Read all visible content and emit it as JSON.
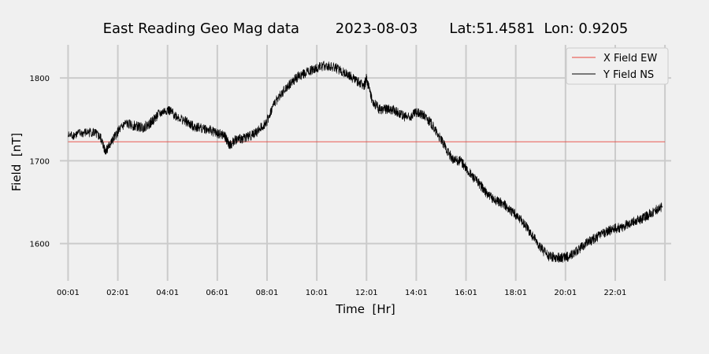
{
  "chart_data": {
    "type": "line",
    "title": "East Reading Geo Mag data        2023-08-03       Lat:51.4581  Lon: 0.9205",
    "xlabel": "Time  [Hr]",
    "ylabel": "Field  [nT]",
    "xlim": [
      -0.33,
      24.25
    ],
    "ylim": [
      1555,
      1840
    ],
    "x_ticks": [
      0,
      2,
      4,
      6,
      8,
      10,
      12,
      14,
      16,
      18,
      20,
      22
    ],
    "x_tick_labels": [
      "00:01",
      "02:01",
      "04:01",
      "06:01",
      "08:01",
      "10:01",
      "12:01",
      "14:01",
      "16:01",
      "18:01",
      "20:01",
      "22:01"
    ],
    "x_grid": [
      0,
      2,
      4,
      6,
      8,
      10,
      12,
      14,
      16,
      18,
      20,
      22,
      24
    ],
    "y_ticks": [
      1600,
      1700,
      1800
    ],
    "grid": true,
    "legend_position": "top-right",
    "series": [
      {
        "name": "X Field EW",
        "color": "#e8433a",
        "x": [
          0,
          24
        ],
        "y": [
          1723,
          1723
        ]
      },
      {
        "name": "Y Field NS",
        "color": "#000000",
        "x": [
          0,
          0.5,
          1.0,
          1.3,
          1.5,
          1.7,
          2.0,
          2.3,
          2.7,
          3.0,
          3.3,
          3.6,
          4.0,
          4.3,
          4.7,
          5.0,
          5.3,
          5.7,
          6.0,
          6.3,
          6.5,
          6.7,
          7.0,
          7.3,
          7.6,
          8.0,
          8.3,
          8.7,
          9.0,
          9.3,
          9.7,
          10.0,
          10.3,
          10.7,
          11.0,
          11.3,
          11.6,
          11.9,
          12.0,
          12.2,
          12.5,
          12.8,
          13.1,
          13.4,
          13.7,
          14.0,
          14.3,
          14.6,
          14.9,
          15.2,
          15.5,
          15.8,
          16.0,
          16.3,
          16.6,
          16.9,
          17.2,
          17.5,
          17.8,
          18.1,
          18.4,
          18.7,
          19.0,
          19.3,
          19.6,
          19.9,
          20.2,
          20.5,
          20.8,
          21.1,
          21.4,
          21.7,
          22.0,
          22.3,
          22.6,
          22.9,
          23.2,
          23.5,
          23.9
        ],
        "y": [
          1730,
          1733,
          1735,
          1728,
          1712,
          1720,
          1735,
          1745,
          1742,
          1740,
          1745,
          1755,
          1762,
          1755,
          1748,
          1742,
          1740,
          1737,
          1733,
          1730,
          1718,
          1725,
          1727,
          1730,
          1735,
          1748,
          1770,
          1785,
          1795,
          1803,
          1808,
          1812,
          1815,
          1813,
          1808,
          1803,
          1797,
          1790,
          1800,
          1775,
          1762,
          1762,
          1762,
          1755,
          1752,
          1758,
          1755,
          1745,
          1730,
          1715,
          1700,
          1700,
          1690,
          1680,
          1670,
          1658,
          1652,
          1648,
          1640,
          1632,
          1622,
          1608,
          1595,
          1585,
          1583,
          1583,
          1585,
          1592,
          1600,
          1605,
          1610,
          1615,
          1618,
          1620,
          1625,
          1628,
          1632,
          1638,
          1645
        ]
      }
    ]
  }
}
